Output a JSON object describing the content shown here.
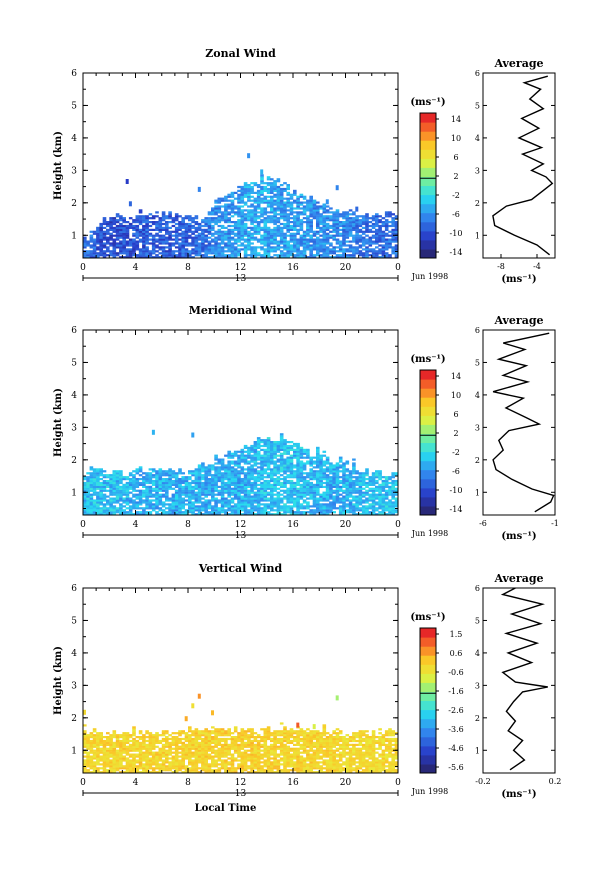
{
  "figure": {
    "date_label": "Jun 1998",
    "day_label": "13",
    "time_axis_label": "Local Time"
  },
  "chart_data": [
    {
      "type": "heatmap",
      "title": "Zonal Wind",
      "xlabel": "",
      "ylabel": "Height (km)",
      "xlim": [
        0,
        24
      ],
      "ylim": [
        0.3,
        6
      ],
      "xticks": [
        "0",
        "4",
        "8",
        "12",
        "16",
        "20",
        "0"
      ],
      "yticks": [
        "1",
        "2",
        "3",
        "4",
        "5",
        "6"
      ],
      "colorbar": {
        "unit": "(ms⁻¹)",
        "ticks": [
          "14",
          "10",
          "6",
          "2",
          "-2",
          "-6",
          "-10",
          "-14"
        ],
        "range": [
          -16,
          16
        ]
      },
      "time_series": [
        {
          "t": 0.5,
          "top_km": 1.0,
          "mean": -9
        },
        {
          "t": 1.5,
          "top_km": 1.55,
          "mean": -11
        },
        {
          "t": 3.0,
          "top_km": 1.6,
          "mean": -11
        },
        {
          "t": 5.0,
          "top_km": 1.7,
          "mean": -10
        },
        {
          "t": 7.0,
          "top_km": 1.7,
          "mean": -10
        },
        {
          "t": 9.0,
          "top_km": 1.55,
          "mean": -9
        },
        {
          "t": 10.5,
          "top_km": 2.2,
          "mean": -7
        },
        {
          "t": 12.0,
          "top_km": 2.5,
          "mean": -6
        },
        {
          "t": 13.5,
          "top_km": 2.8,
          "mean": -5
        },
        {
          "t": 15.0,
          "top_km": 2.7,
          "mean": -6
        },
        {
          "t": 16.5,
          "top_km": 2.3,
          "mean": -6
        },
        {
          "t": 18.0,
          "top_km": 2.1,
          "mean": -7
        },
        {
          "t": 19.5,
          "top_km": 1.8,
          "mean": -7
        },
        {
          "t": 21.0,
          "top_km": 1.7,
          "mean": -8
        },
        {
          "t": 22.5,
          "top_km": 1.7,
          "mean": -9
        },
        {
          "t": 23.5,
          "top_km": 1.7,
          "mean": -9
        }
      ],
      "average_profile": {
        "title": "Average",
        "xlabel": "(ms⁻¹)",
        "xlim": [
          -10,
          -2
        ],
        "xticks": [
          "-8",
          "-4"
        ],
        "points": [
          {
            "h": 0.4,
            "v": -2.6
          },
          {
            "h": 0.7,
            "v": -4.0
          },
          {
            "h": 1.0,
            "v": -6.5
          },
          {
            "h": 1.3,
            "v": -8.7
          },
          {
            "h": 1.6,
            "v": -8.9
          },
          {
            "h": 1.9,
            "v": -7.4
          },
          {
            "h": 2.1,
            "v": -4.6
          },
          {
            "h": 2.4,
            "v": -3.2
          },
          {
            "h": 2.6,
            "v": -2.3
          },
          {
            "h": 2.8,
            "v": -3.0
          },
          {
            "h": 3.0,
            "v": -4.6
          },
          {
            "h": 3.2,
            "v": -3.3
          },
          {
            "h": 3.5,
            "v": -5.6
          },
          {
            "h": 3.7,
            "v": -3.5
          },
          {
            "h": 4.0,
            "v": -6.0
          },
          {
            "h": 4.3,
            "v": -3.8
          },
          {
            "h": 4.6,
            "v": -5.7
          },
          {
            "h": 4.9,
            "v": -3.3
          },
          {
            "h": 5.2,
            "v": -4.8
          },
          {
            "h": 5.5,
            "v": -3.6
          },
          {
            "h": 5.7,
            "v": -5.4
          },
          {
            "h": 5.9,
            "v": -2.8
          }
        ]
      }
    },
    {
      "type": "heatmap",
      "title": "Meridional Wind",
      "xlabel": "",
      "ylabel": "Height (km)",
      "xlim": [
        0,
        24
      ],
      "ylim": [
        0.3,
        6
      ],
      "xticks": [
        "0",
        "4",
        "8",
        "12",
        "16",
        "20",
        "0"
      ],
      "yticks": [
        "1",
        "2",
        "3",
        "4",
        "5",
        "6"
      ],
      "colorbar": {
        "unit": "(ms⁻¹)",
        "ticks": [
          "14",
          "10",
          "6",
          "2",
          "-2",
          "-6",
          "-10",
          "-14"
        ],
        "range": [
          -16,
          16
        ]
      },
      "time_series": [
        {
          "t": 0.5,
          "top_km": 1.6,
          "mean": -4
        },
        {
          "t": 2.0,
          "top_km": 1.6,
          "mean": -4
        },
        {
          "t": 4.0,
          "top_km": 1.65,
          "mean": -5
        },
        {
          "t": 6.0,
          "top_km": 1.7,
          "mean": -5
        },
        {
          "t": 8.0,
          "top_km": 1.7,
          "mean": -5
        },
        {
          "t": 10.0,
          "top_km": 2.0,
          "mean": -5
        },
        {
          "t": 12.0,
          "top_km": 2.4,
          "mean": -5
        },
        {
          "t": 14.0,
          "top_km": 2.7,
          "mean": -4
        },
        {
          "t": 16.0,
          "top_km": 2.6,
          "mean": -4
        },
        {
          "t": 18.0,
          "top_km": 2.2,
          "mean": -5
        },
        {
          "t": 20.0,
          "top_km": 1.9,
          "mean": -5
        },
        {
          "t": 22.0,
          "top_km": 1.7,
          "mean": -4
        },
        {
          "t": 23.5,
          "top_km": 1.6,
          "mean": -4
        }
      ],
      "average_profile": {
        "title": "Average",
        "xlabel": "(ms⁻¹)",
        "xlim": [
          -6,
          -1
        ],
        "xticks": [
          "-6",
          "-1"
        ],
        "points": [
          {
            "h": 0.4,
            "v": -2.4
          },
          {
            "h": 0.7,
            "v": -1.3
          },
          {
            "h": 0.9,
            "v": -1.1
          },
          {
            "h": 1.1,
            "v": -2.6
          },
          {
            "h": 1.4,
            "v": -4.0
          },
          {
            "h": 1.7,
            "v": -5.1
          },
          {
            "h": 2.0,
            "v": -5.3
          },
          {
            "h": 2.3,
            "v": -4.6
          },
          {
            "h": 2.6,
            "v": -4.9
          },
          {
            "h": 2.9,
            "v": -4.2
          },
          {
            "h": 3.1,
            "v": -2.1
          },
          {
            "h": 3.3,
            "v": -3.0
          },
          {
            "h": 3.6,
            "v": -4.4
          },
          {
            "h": 3.9,
            "v": -3.2
          },
          {
            "h": 4.1,
            "v": -5.3
          },
          {
            "h": 4.4,
            "v": -2.9
          },
          {
            "h": 4.6,
            "v": -4.6
          },
          {
            "h": 4.9,
            "v": -3.0
          },
          {
            "h": 5.1,
            "v": -4.9
          },
          {
            "h": 5.4,
            "v": -3.1
          },
          {
            "h": 5.6,
            "v": -4.6
          },
          {
            "h": 5.9,
            "v": -1.4
          }
        ]
      }
    },
    {
      "type": "heatmap",
      "title": "Vertical Wind",
      "xlabel": "Local Time",
      "ylabel": "Height (km)",
      "xlim": [
        0,
        24
      ],
      "ylim": [
        0.3,
        6
      ],
      "xticks": [
        "0",
        "4",
        "8",
        "12",
        "16",
        "20",
        "0"
      ],
      "yticks": [
        "1",
        "2",
        "3",
        "4",
        "5",
        "6"
      ],
      "colorbar": {
        "unit": "(ms⁻¹)",
        "ticks": [
          "1.5",
          "0.6",
          "-0.6",
          "-1.6",
          "-2.6",
          "-3.6",
          "-4.6",
          "-5.6"
        ],
        "range": [
          -6,
          2
        ]
      },
      "time_series": [
        {
          "t": 0.5,
          "top_km": 1.6,
          "mean": 0.0
        },
        {
          "t": 3.0,
          "top_km": 1.6,
          "mean": 0.1
        },
        {
          "t": 6.0,
          "top_km": 1.6,
          "mean": 0.1
        },
        {
          "t": 9.0,
          "top_km": 1.65,
          "mean": 0.1
        },
        {
          "t": 12.0,
          "top_km": 1.7,
          "mean": 0.2
        },
        {
          "t": 15.0,
          "top_km": 1.75,
          "mean": 0.1
        },
        {
          "t": 18.0,
          "top_km": 1.65,
          "mean": 0.1
        },
        {
          "t": 21.0,
          "top_km": 1.6,
          "mean": 0.0
        },
        {
          "t": 23.5,
          "top_km": 1.6,
          "mean": 0.0
        }
      ],
      "average_profile": {
        "title": "Average",
        "xlabel": "(ms⁻¹)",
        "xlim": [
          -0.2,
          0.2
        ],
        "xticks": [
          "-0.2",
          "0.2"
        ],
        "points": [
          {
            "h": 0.4,
            "v": -0.05
          },
          {
            "h": 0.7,
            "v": 0.03
          },
          {
            "h": 1.0,
            "v": -0.03
          },
          {
            "h": 1.3,
            "v": 0.02
          },
          {
            "h": 1.6,
            "v": -0.06
          },
          {
            "h": 1.9,
            "v": -0.02
          },
          {
            "h": 2.2,
            "v": -0.07
          },
          {
            "h": 2.5,
            "v": -0.03
          },
          {
            "h": 2.8,
            "v": 0.02
          },
          {
            "h": 2.95,
            "v": 0.16
          },
          {
            "h": 3.1,
            "v": -0.02
          },
          {
            "h": 3.4,
            "v": -0.09
          },
          {
            "h": 3.7,
            "v": 0.07
          },
          {
            "h": 4.0,
            "v": -0.06
          },
          {
            "h": 4.3,
            "v": 0.1
          },
          {
            "h": 4.6,
            "v": -0.07
          },
          {
            "h": 4.9,
            "v": 0.12
          },
          {
            "h": 5.2,
            "v": -0.04
          },
          {
            "h": 5.5,
            "v": 0.13
          },
          {
            "h": 5.8,
            "v": -0.09
          },
          {
            "h": 6.0,
            "v": -0.02
          }
        ]
      }
    }
  ]
}
